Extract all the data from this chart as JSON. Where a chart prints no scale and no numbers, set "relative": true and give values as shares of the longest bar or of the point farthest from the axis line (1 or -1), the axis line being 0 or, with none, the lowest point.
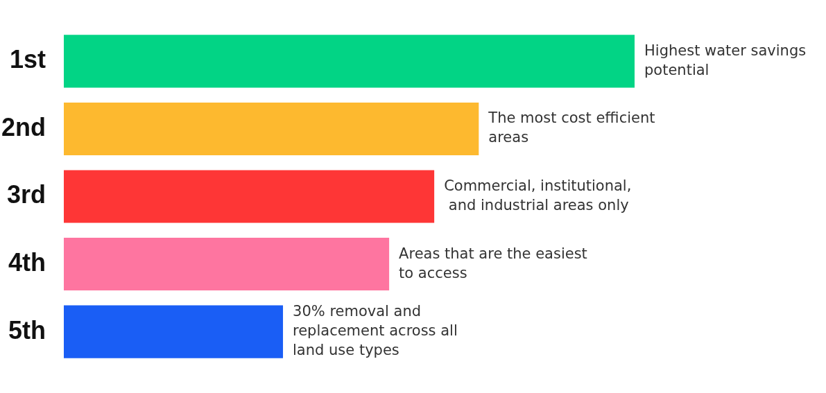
{
  "chart_data": {
    "type": "bar",
    "orientation": "horizontal",
    "relative": true,
    "categories": [
      "1st",
      "2nd",
      "3rd",
      "4th",
      "5th"
    ],
    "values": [
      1,
      0.727,
      0.649,
      0.57,
      0.384
    ],
    "colors": [
      "#02d485",
      "#fdb92f",
      "#fe3636",
      "#fe75a0",
      "#1a5ef5"
    ],
    "annotations": [
      {
        "text": "Highest water savings\npotential",
        "x": 1,
        "y": "1st"
      },
      {
        "text": "The most cost efficient\nareas",
        "x": 0.727,
        "y": "2nd"
      },
      {
        "text": "Commercial, institutional,\n and industrial areas only",
        "x": 0.649,
        "y": "3rd"
      },
      {
        "text": "Areas that are the easiest\nto access",
        "x": 0.57,
        "y": "4th"
      },
      {
        "text": "30% removal and\nreplacement across all\nland use types",
        "x": 0.384,
        "y": "5th"
      }
    ],
    "grid": false,
    "legend": false
  }
}
